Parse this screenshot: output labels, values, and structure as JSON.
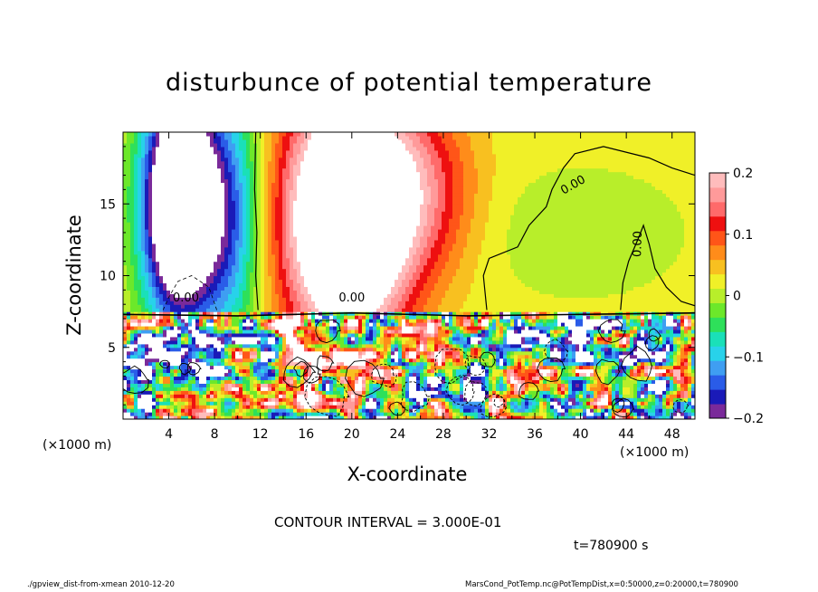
{
  "chart_data": {
    "type": "heatmap",
    "title": "disturbunce of potential temperature",
    "xlabel": "X-coordinate",
    "ylabel": "Z-coordinate",
    "x_unit_left": "(×1000 m)",
    "x_unit_right": "(×1000 m)",
    "xlim": [
      0,
      50
    ],
    "ylim": [
      0,
      20
    ],
    "x_ticks": [
      4,
      8,
      12,
      16,
      20,
      24,
      28,
      32,
      36,
      40,
      44,
      48
    ],
    "y_ticks": [
      5,
      10,
      15
    ],
    "colorbar": {
      "min": -0.2,
      "max": 0.2,
      "ticks": [
        "0.2",
        "0.1",
        "0",
        "−0.1",
        "−0.2"
      ],
      "tick_values": [
        0.2,
        0.1,
        0,
        -0.1,
        -0.2
      ],
      "colors": [
        "#7a2a9a",
        "#1a1ab8",
        "#2a5ce8",
        "#3f9ef2",
        "#28d2ea",
        "#1ae0b8",
        "#2ee05a",
        "#6ce82a",
        "#b8ee2a",
        "#f0f028",
        "#f8c020",
        "#ff8c1a",
        "#ff5518",
        "#ee1010",
        "#ff6a6a",
        "#ff9a9a",
        "#ffbcbc"
      ]
    },
    "contour_labels": [
      "0.00",
      "0.00",
      "0.00",
      "0.00"
    ],
    "contour_interval": "CONTOUR INTERVAL = 3.000E-01",
    "time": "t=780900 s"
  },
  "footer": {
    "left": "./gpview_dist-from-xmean  2010-12-20",
    "right": "MarsCond_PotTemp.nc@PotTempDist,x=0:50000,z=0:20000,t=780900"
  }
}
